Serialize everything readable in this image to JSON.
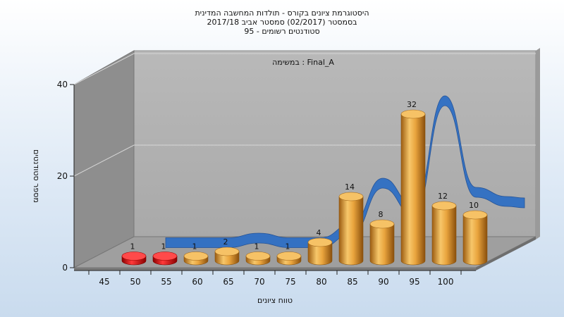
{
  "chart_data": {
    "type": "bar",
    "title_lines": [
      "היסטוגרמת ציונים בקורס - תולדות המחשבה המדינית",
      "בסמסטר  (02/2017)  סמסטר אביב 2017/18",
      "סטודנטים רשומים - 95"
    ],
    "subtitle": "במשימה : Final_A",
    "xlabel": "טווח ציונים",
    "ylabel": "מספר סטודנטים",
    "x_ticks": [
      "45",
      "50",
      "55",
      "60",
      "65",
      "70",
      "75",
      "80",
      "85",
      "90",
      "95",
      "100"
    ],
    "y_ticks": [
      0,
      20,
      40
    ],
    "ylim": [
      0,
      40
    ],
    "values": [
      1,
      1,
      1,
      2,
      1,
      1,
      4,
      14,
      8,
      32,
      12,
      10
    ],
    "bar_colors": [
      "#e01010",
      "#e01010",
      "#e5a23a",
      "#e5a23a",
      "#e5a23a",
      "#e5a23a",
      "#e5a23a",
      "#e5a23a",
      "#e5a23a",
      "#e5a23a",
      "#e5a23a",
      "#e5a23a"
    ],
    "trend_color": "#2f6fc4",
    "grid": true
  }
}
